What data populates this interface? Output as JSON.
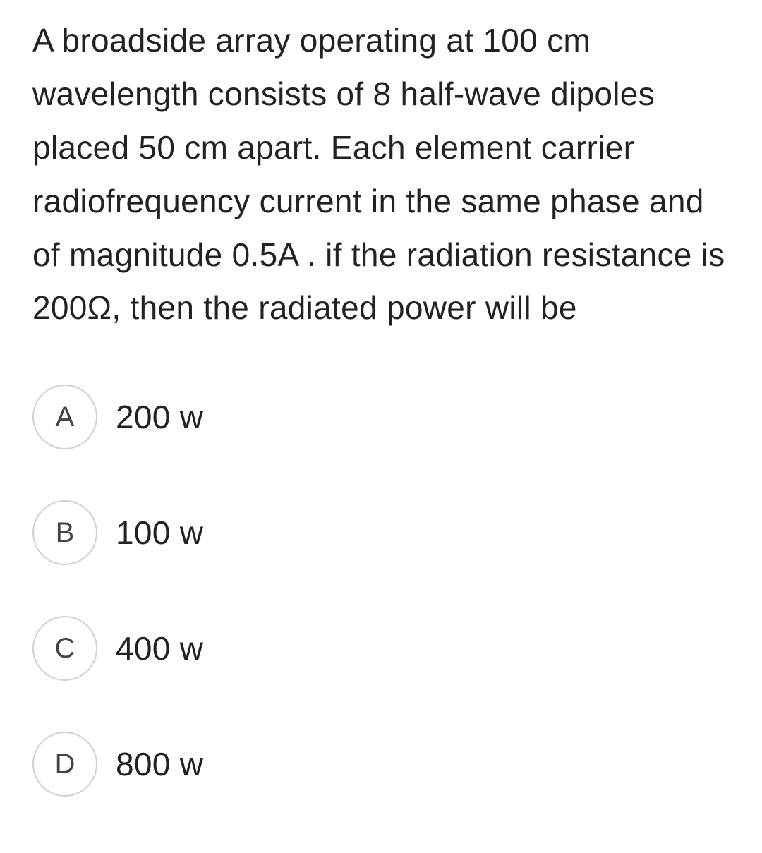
{
  "question": {
    "text": "A broadside array operating at 100 cm wavelength consists of 8 half-wave dipoles placed 50 cm apart. Each element carrier radiofrequency current in the same phase and of magnitude 0.5A . if the radiation resistance is 200Ω, then the radiated power will be"
  },
  "options": [
    {
      "letter": "A",
      "text": "200 w"
    },
    {
      "letter": "B",
      "text": "100 w"
    },
    {
      "letter": "C",
      "text": "400 w"
    },
    {
      "letter": "D",
      "text": "800 w"
    }
  ],
  "styling": {
    "background_color": "#ffffff",
    "text_color": "#222222",
    "circle_border_color": "#d0d0d0",
    "circle_text_color": "#444444",
    "question_fontsize": 46,
    "option_fontsize": 46,
    "circle_letter_fontsize": 40,
    "circle_diameter": 92,
    "line_height": 1.65,
    "option_gap": 72
  }
}
